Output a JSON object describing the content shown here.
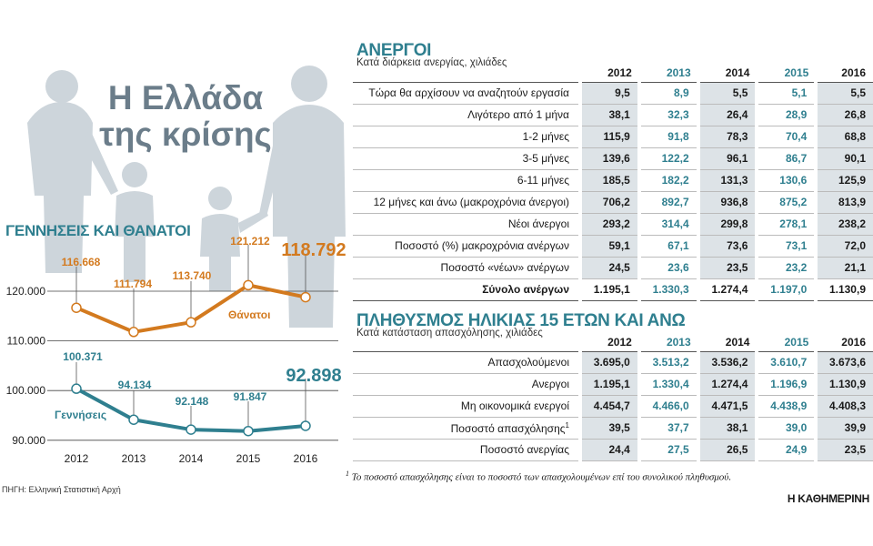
{
  "colors": {
    "deaths": "#d37a1f",
    "births": "#2f7f8f",
    "title_teal": "#2f7f8f",
    "silhouette": "#c8d0d6"
  },
  "left": {
    "title_line1": "Η Ελλάδα",
    "title_line2": "της κρίσης",
    "chart_title": "ΓΕΝΝΗΣΕΙΣ ΚΑΙ ΘΑΝΑΤΟΙ",
    "source": "ΠΗΓΗ: Ελληνική Στατιστική Αρχή"
  },
  "chart_data": {
    "type": "line",
    "x": [
      "2012",
      "2013",
      "2014",
      "2015",
      "2016"
    ],
    "y_ticks": [
      "120.000",
      "110.000",
      "100.000",
      "90.000"
    ],
    "y_tick_values": [
      120000,
      110000,
      100000,
      90000
    ],
    "ylim": [
      90000,
      125000
    ],
    "series": [
      {
        "name": "Θάνατοι",
        "key": "deaths",
        "values": [
          116668,
          111794,
          113740,
          121212,
          118792
        ],
        "labels": [
          "116.668",
          "111.794",
          "113.740",
          "121.212",
          "118.792"
        ]
      },
      {
        "name": "Γεννήσεις",
        "key": "births",
        "values": [
          100371,
          94134,
          92148,
          91847,
          92898
        ],
        "labels": [
          "100.371",
          "94.134",
          "92.148",
          "91.847",
          "92.898"
        ]
      }
    ]
  },
  "unemployed": {
    "title": "ΑΝΕΡΓΟΙ",
    "subtitle": "Κατά διάρκεια ανεργίας, χιλιάδες",
    "years": [
      "2012",
      "2013",
      "2014",
      "2015",
      "2016"
    ],
    "rows": [
      {
        "label": "Τώρα θα αρχίσουν να αναζητούν εργασία",
        "values": [
          "9,5",
          "8,9",
          "5,5",
          "5,1",
          "5,5"
        ]
      },
      {
        "label": "Λιγότερο από 1 μήνα",
        "values": [
          "38,1",
          "32,3",
          "26,4",
          "28,9",
          "26,8"
        ]
      },
      {
        "label": "1-2 μήνες",
        "values": [
          "115,9",
          "91,8",
          "78,3",
          "70,4",
          "68,8"
        ]
      },
      {
        "label": "3-5 μήνες",
        "values": [
          "139,6",
          "122,2",
          "96,1",
          "86,7",
          "90,1"
        ]
      },
      {
        "label": "6-11 μήνες",
        "values": [
          "185,5",
          "182,2",
          "131,3",
          "130,6",
          "125,9"
        ]
      },
      {
        "label": "12 μήνες και άνω (μακροχρόνια άνεργοι)",
        "values": [
          "706,2",
          "892,7",
          "936,8",
          "875,2",
          "813,9"
        ]
      },
      {
        "label": "Νέοι άνεργοι",
        "values": [
          "293,2",
          "314,4",
          "299,8",
          "278,1",
          "238,2"
        ]
      },
      {
        "label": "Ποσοστό (%) μακροχρόνια ανέργων",
        "values": [
          "59,1",
          "67,1",
          "73,6",
          "73,1",
          "72,0"
        ]
      },
      {
        "label": "Ποσοστό «νέων» ανέργων",
        "values": [
          "24,5",
          "23,6",
          "23,5",
          "23,2",
          "21,1"
        ]
      }
    ],
    "total": {
      "label": "Σύνολο ανέργων",
      "values": [
        "1.195,1",
        "1.330,3",
        "1.274,4",
        "1.197,0",
        "1.130,9"
      ]
    }
  },
  "population": {
    "title": "ΠΛΗΘΥΣΜΟΣ ΗΛΙΚΙΑΣ 15 ΕΤΩΝ ΚΑΙ ΑΝΩ",
    "subtitle": "Κατά κατάσταση απασχόλησης, χιλιάδες",
    "years": [
      "2012",
      "2013",
      "2014",
      "2015",
      "2016"
    ],
    "rows": [
      {
        "label": "Απασχολούμενοι",
        "values": [
          "3.695,0",
          "3.513,2",
          "3.536,2",
          "3.610,7",
          "3.673,6"
        ]
      },
      {
        "label": "Ανεργοι",
        "values": [
          "1.195,1",
          "1.330,4",
          "1.274,4",
          "1.196,9",
          "1.130,9"
        ]
      },
      {
        "label": "Μη οικονομικά ενεργοί",
        "values": [
          "4.454,7",
          "4.466,0",
          "4.471,5",
          "4.438,9",
          "4.408,3"
        ]
      },
      {
        "label": "Ποσοστό απασχόλησης",
        "sup": "1",
        "values": [
          "39,5",
          "37,7",
          "38,1",
          "39,0",
          "39,9"
        ]
      },
      {
        "label": "Ποσοστό ανεργίας",
        "values": [
          "24,4",
          "27,5",
          "26,5",
          "24,9",
          "23,5"
        ]
      }
    ]
  },
  "footnote": {
    "mark": "1",
    "text": " Το ποσοστό απασχόλησης είναι το ποσοστό των απασχολουμένων επί του συνολικού πληθυσμού."
  },
  "brand": "Η ΚΑΘΗΜΕΡΙΝΗ"
}
